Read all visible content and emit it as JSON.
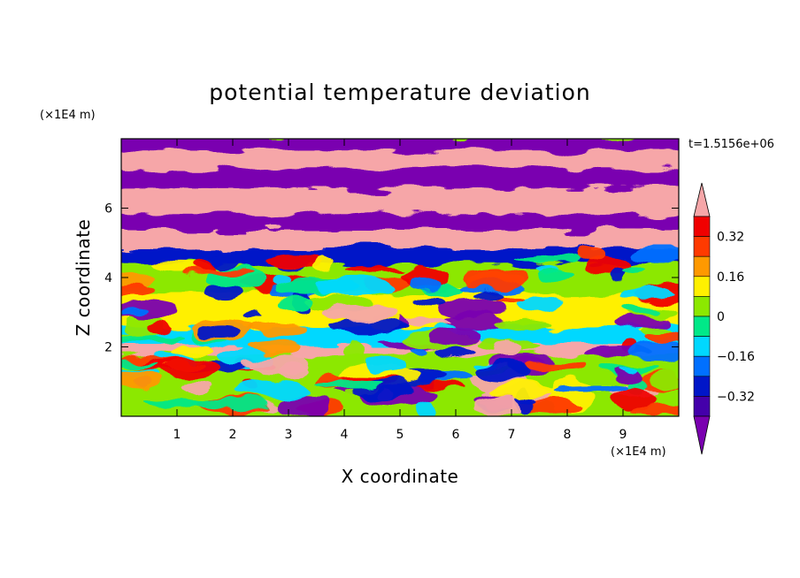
{
  "chart_data": {
    "type": "heatmap",
    "title": "potential temperature deviation",
    "xlabel": "X coordinate",
    "ylabel": "Z coordinate",
    "x_unit": "(×1E4 m)",
    "y_unit": "(×1E4 m)",
    "time_label": "t=1.5156e+06",
    "xlim": [
      0,
      10
    ],
    "ylim": [
      0,
      8
    ],
    "x_ticks": [
      "1",
      "2",
      "3",
      "4",
      "5",
      "6",
      "7",
      "8",
      "9"
    ],
    "y_ticks": [
      "2",
      "4",
      "6"
    ],
    "colorbar": {
      "levels": [
        -0.4,
        -0.32,
        -0.24,
        -0.16,
        -0.08,
        0,
        0.08,
        0.16,
        0.24,
        0.32,
        0.4
      ],
      "labels": [
        "0.32",
        "0.16",
        "0",
        "−0.16",
        "−0.32"
      ],
      "label_values": [
        0.32,
        0.16,
        0,
        -0.16,
        -0.32
      ],
      "colors_low_to_high": [
        "#7a00b0",
        "#4400aa",
        "#0016c8",
        "#0070ff",
        "#00d8ff",
        "#00e888",
        "#8ce800",
        "#fff000",
        "#ff9900",
        "#ff3a00",
        "#f00000",
        "#f6a6a8"
      ],
      "extend": "both"
    },
    "bands": [
      {
        "z": [
          7.6,
          8.0
        ],
        "value": -0.42
      },
      {
        "z": [
          7.05,
          7.6
        ],
        "value": 0.45
      },
      {
        "z": [
          6.5,
          7.05
        ],
        "value": -0.42
      },
      {
        "z": [
          5.75,
          6.5
        ],
        "value": 0.45
      },
      {
        "z": [
          5.3,
          5.75
        ],
        "value": -0.42
      },
      {
        "z": [
          4.75,
          5.3
        ],
        "value": 0.45
      },
      {
        "z": [
          4.3,
          4.75
        ],
        "value": -0.3
      },
      {
        "z": [
          3.5,
          4.3
        ],
        "value": 0.05
      },
      {
        "z": [
          2.5,
          3.5
        ],
        "value": 0.12
      },
      {
        "z": [
          2.0,
          2.5
        ],
        "value": -0.1
      },
      {
        "z": [
          1.7,
          2.0
        ],
        "value": 0.4
      },
      {
        "z": [
          0.0,
          1.7
        ],
        "value": 0.03
      }
    ]
  }
}
